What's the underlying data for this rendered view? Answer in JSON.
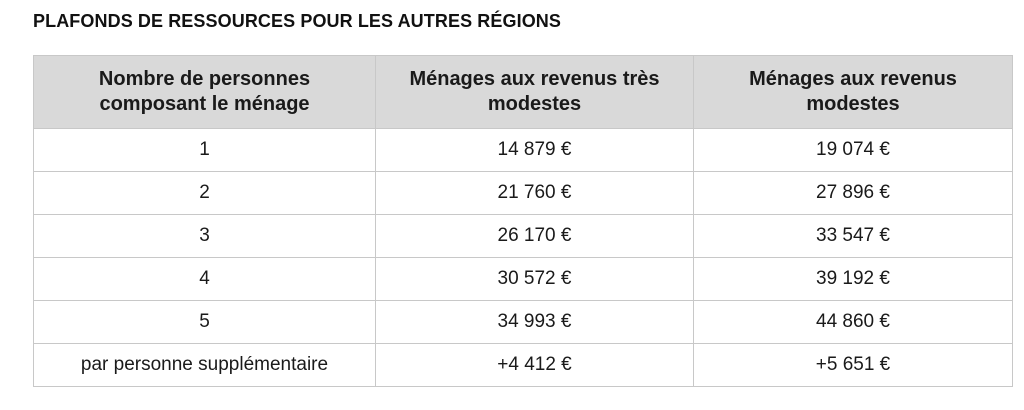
{
  "title": "PLAFONDS DE RESSOURCES POUR LES AUTRES RÉGIONS",
  "table": {
    "headers": [
      "Nombre de personnes composant le ménage",
      "Ménages aux revenus très modestes",
      "Ménages aux revenus modestes"
    ],
    "rows": [
      [
        "1",
        "14 879 €",
        "19 074 €"
      ],
      [
        "2",
        "21 760 €",
        "27 896 €"
      ],
      [
        "3",
        "26 170 €",
        "33 547 €"
      ],
      [
        "4",
        "30 572 €",
        "39 192 €"
      ],
      [
        "5",
        "34 993 €",
        "44 860 €"
      ],
      [
        "par personne supplémentaire",
        "+4 412 €",
        "+5 651 €"
      ]
    ]
  }
}
